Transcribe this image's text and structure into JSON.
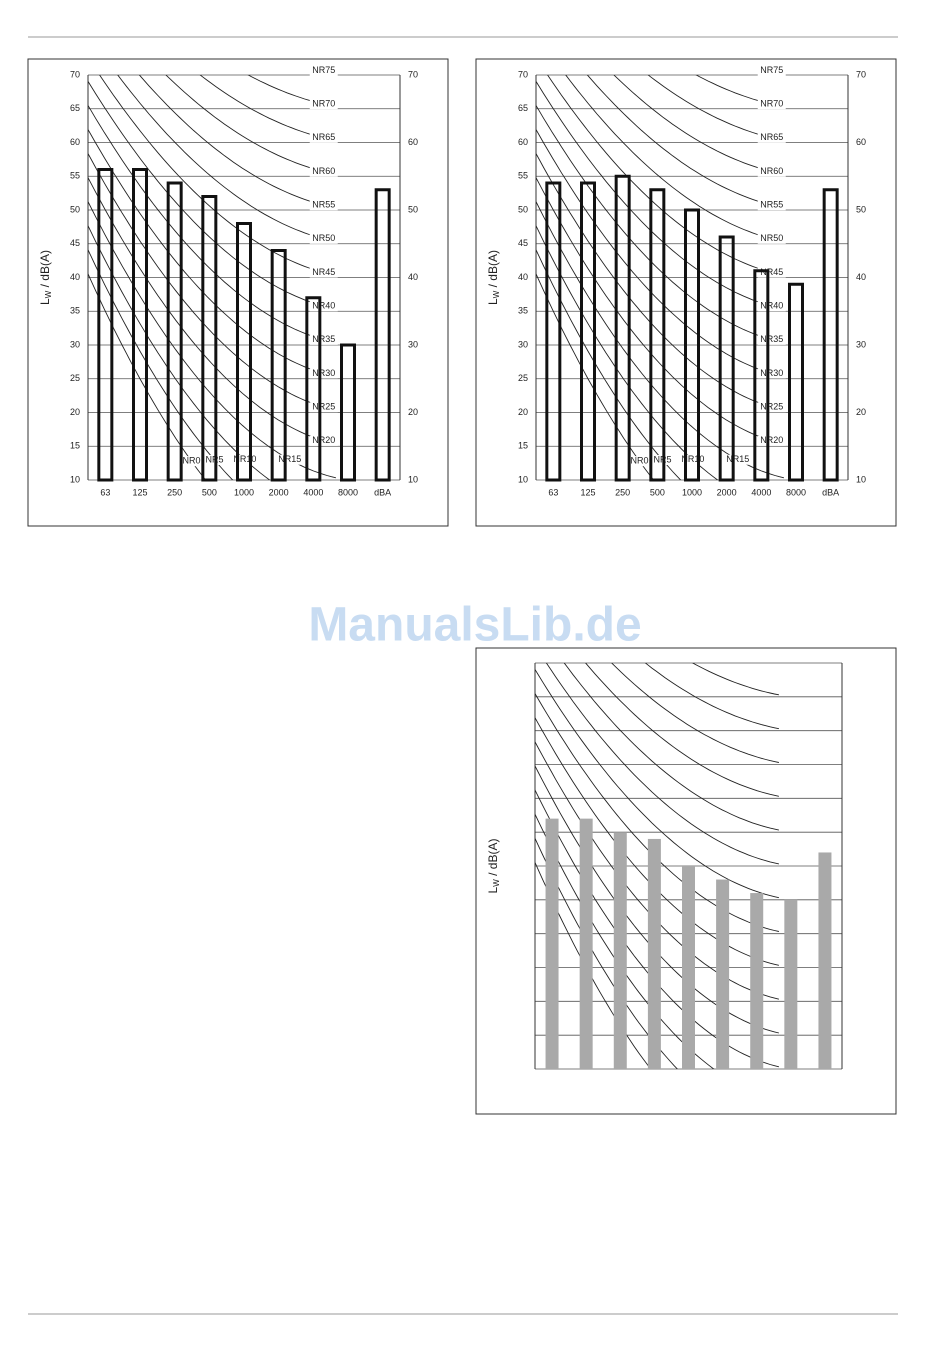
{
  "watermark": "ManualsLib.de",
  "charts": [
    {
      "type": "bar",
      "bar_style": "outline",
      "color": "#111111",
      "y_label": {
        "symbol": "L",
        "subscript": "W",
        "unit": "/ dB(A)"
      },
      "categories": [
        "63",
        "125",
        "250",
        "500",
        "1000",
        "2000",
        "4000",
        "8000",
        "dBA"
      ],
      "values": [
        56,
        56,
        54,
        52,
        48,
        44,
        37,
        30,
        53
      ],
      "ylim": [
        10,
        70
      ],
      "yticks": [
        10,
        15,
        20,
        25,
        30,
        35,
        40,
        45,
        50,
        55,
        60,
        65,
        70
      ],
      "y2ticks": [
        10,
        20,
        30,
        40,
        50,
        60,
        70
      ],
      "tick_labels": true,
      "grid": true,
      "curve_labels": [
        "NR0",
        "NR5",
        "NR10",
        "NR15",
        "NR20",
        "NR25",
        "NR30",
        "NR35",
        "NR40",
        "NR45",
        "NR50",
        "NR55",
        "NR60",
        "NR65",
        "NR70",
        "NR75"
      ]
    },
    {
      "type": "bar",
      "bar_style": "outline",
      "color": "#111111",
      "y_label": {
        "symbol": "L",
        "subscript": "W",
        "unit": "/ dB(A)"
      },
      "categories": [
        "63",
        "125",
        "250",
        "500",
        "1000",
        "2000",
        "4000",
        "8000",
        "dBA"
      ],
      "values": [
        54,
        54,
        55,
        53,
        50,
        46,
        41,
        39,
        53
      ],
      "ylim": [
        10,
        70
      ],
      "yticks": [
        10,
        15,
        20,
        25,
        30,
        35,
        40,
        45,
        50,
        55,
        60,
        65,
        70
      ],
      "y2ticks": [
        10,
        20,
        30,
        40,
        50,
        60,
        70
      ],
      "tick_labels": true,
      "grid": true,
      "curve_labels": [
        "NR0",
        "NR5",
        "NR10",
        "NR15",
        "NR20",
        "NR25",
        "NR30",
        "NR35",
        "NR40",
        "NR45",
        "NR50",
        "NR55",
        "NR60",
        "NR65",
        "NR70",
        "NR75"
      ]
    },
    {
      "type": "bar",
      "bar_style": "filled",
      "color": "#a9a9a9",
      "y_label": {
        "symbol": "L",
        "subscript": "W",
        "unit": "/ dB(A)"
      },
      "categories": [
        null,
        null,
        null,
        null,
        null,
        null,
        null,
        null,
        null
      ],
      "values": [
        47,
        47,
        45,
        44,
        40,
        38,
        36,
        35,
        42
      ],
      "ylim": [
        10,
        70
      ],
      "yticks": [
        10,
        15,
        20,
        25,
        30,
        35,
        40,
        45,
        50,
        55,
        60,
        65,
        70
      ],
      "tick_labels": false,
      "grid": true
    }
  ]
}
